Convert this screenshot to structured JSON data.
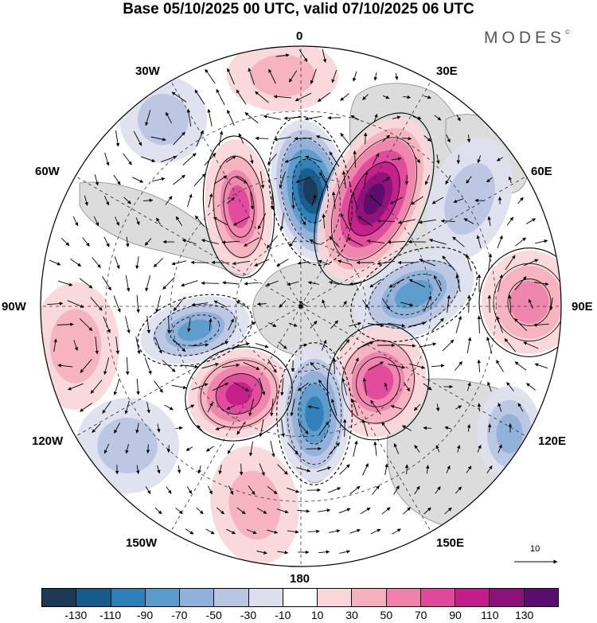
{
  "title": "Base 05/10/2025 00 UTC, valid 07/10/2025 06 UTC",
  "brand": {
    "name": "MODES",
    "mark": "©"
  },
  "longitude_labels": {
    "lon_0": "0",
    "lon_30e": "30E",
    "lon_60e": "60E",
    "lon_90e": "90E",
    "lon_120e": "120E",
    "lon_150e": "150E",
    "lon_180": "180",
    "lon_150w": "150W",
    "lon_120w": "120W",
    "lon_90w": "90W",
    "lon_60w": "60W",
    "lon_30w": "30W"
  },
  "reference_vector": {
    "label": "10"
  },
  "colorbar": {
    "colors": [
      "#1c3a56",
      "#175b8b",
      "#2f7fb8",
      "#5a9bcc",
      "#8fb0d8",
      "#b9c6e2",
      "#dedfee",
      "#ffffff",
      "#f9d6d8",
      "#f4b1bd",
      "#ee82ab",
      "#e0489a",
      "#c31d8a",
      "#8c117a",
      "#5a0d6e"
    ],
    "tick_labels": [
      "-130",
      "-110",
      "-90",
      "-70",
      "-50",
      "-30",
      "-10",
      "10",
      "30",
      "50",
      "70",
      "90",
      "110",
      "130"
    ]
  },
  "palette": {
    "land": "#dcdcdc",
    "graticule": "#333333",
    "contour": "#000000"
  }
}
